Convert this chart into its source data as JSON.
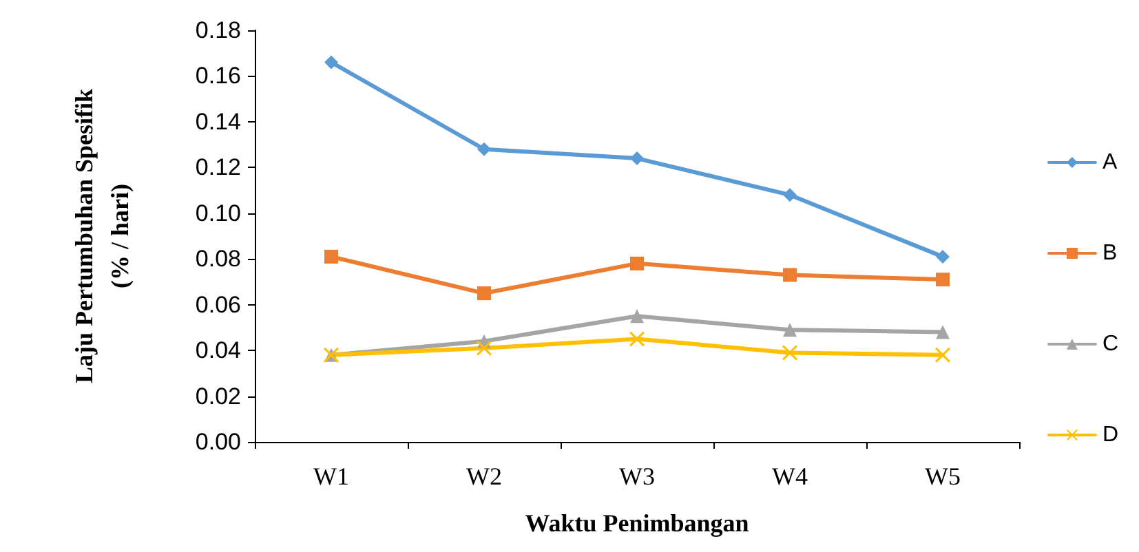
{
  "chart_data": {
    "type": "line",
    "xlabel": "Waktu Penimbangan",
    "ylabel": "Laju Pertumbuhan Spesifik\n(% / hari)",
    "categories": [
      "W1",
      "W2",
      "W3",
      "W4",
      "W5"
    ],
    "series": [
      {
        "name": "A",
        "color": "#5b9bd5",
        "marker": "diamond",
        "values": [
          0.166,
          0.128,
          0.124,
          0.108,
          0.081
        ]
      },
      {
        "name": "B",
        "color": "#ed7d31",
        "marker": "square",
        "values": [
          0.081,
          0.065,
          0.078,
          0.073,
          0.071
        ]
      },
      {
        "name": "C",
        "color": "#a5a5a5",
        "marker": "triangle",
        "values": [
          0.038,
          0.044,
          0.055,
          0.049,
          0.048
        ]
      },
      {
        "name": "D",
        "color": "#ffc000",
        "marker": "cross",
        "values": [
          0.038,
          0.041,
          0.045,
          0.039,
          0.038
        ]
      }
    ],
    "ylim": [
      0,
      0.18
    ],
    "yticks": [
      {
        "value": 0,
        "label": "0.00"
      },
      {
        "value": 0.02,
        "label": "0.02"
      },
      {
        "value": 0.04,
        "label": "0.04"
      },
      {
        "value": 0.06,
        "label": "0.06"
      },
      {
        "value": 0.08,
        "label": "0.08"
      },
      {
        "value": 0.1,
        "label": "0.10"
      },
      {
        "value": 0.12,
        "label": "0.12"
      },
      {
        "value": 0.14,
        "label": "0.14"
      },
      {
        "value": 0.16,
        "label": "0.16"
      },
      {
        "value": 0.18,
        "label": "0.18"
      }
    ],
    "grid": false,
    "legend": "right",
    "line_style": "solid"
  }
}
